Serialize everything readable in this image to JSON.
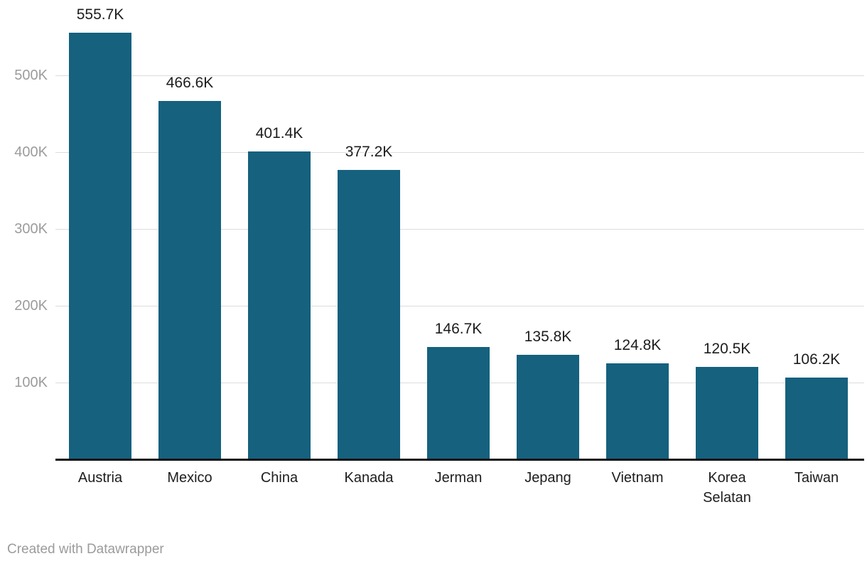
{
  "chart_data": {
    "type": "bar",
    "title": "",
    "categories": [
      "Austria",
      "Mexico",
      "China",
      "Kanada",
      "Jerman",
      "Jepang",
      "Vietnam",
      "Korea Selatan",
      "Taiwan"
    ],
    "values": [
      555700,
      466600,
      401400,
      377200,
      146700,
      135800,
      124800,
      120500,
      106200
    ],
    "value_labels": [
      "555.7K",
      "466.6K",
      "401.4K",
      "377.2K",
      "146.7K",
      "135.8K",
      "124.8K",
      "120.5K",
      "106.2K"
    ],
    "xlabel": "",
    "ylabel": "",
    "ylim": [
      0,
      560000
    ],
    "grid": "horizontal",
    "legend_position": "none",
    "y_axis_ticks": [
      {
        "value": 100000,
        "label": "100K"
      },
      {
        "value": 200000,
        "label": "200K"
      },
      {
        "value": 300000,
        "label": "300K"
      },
      {
        "value": 400000,
        "label": "400K"
      },
      {
        "value": 500000,
        "label": "500K"
      }
    ]
  },
  "colors": {
    "bar": "#15617e",
    "gridline": "#dcdcdc",
    "axis_line": "#141414",
    "tick_label": "#9c9c9c",
    "value_label": "#1d1d1d",
    "category_label": "#1d1d1d",
    "credit_text": "#9b9b9b",
    "background": "#ffffff"
  },
  "footer": {
    "credit": "Created with Datawrapper"
  }
}
